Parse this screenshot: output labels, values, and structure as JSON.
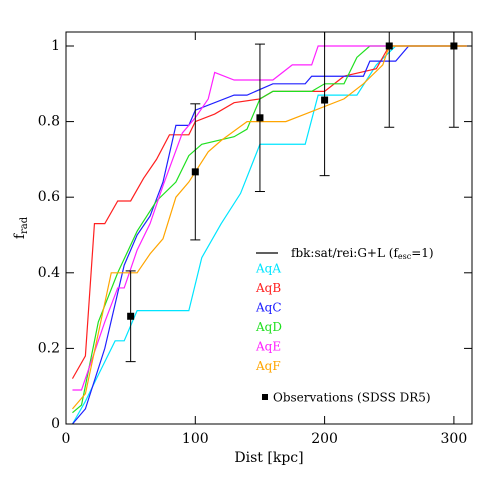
{
  "chart_data": {
    "type": "line",
    "xlabel": "Dist [kpc]",
    "ylabel": {
      "main": "f",
      "sub": "rad"
    },
    "xlim": [
      0,
      314
    ],
    "ylim": [
      0,
      1.037
    ],
    "xticks": [
      0,
      100,
      200,
      300
    ],
    "yticks": [
      0,
      0.2,
      0.4,
      0.6,
      0.8,
      1
    ],
    "model_label": {
      "main": "fbk:sat/rei:G+L (f",
      "sub": "esc",
      "tail": "=1)"
    },
    "series": [
      {
        "name": "AqA",
        "color": "#00e5ff",
        "x": [
          5,
          15,
          25,
          38,
          45,
          55,
          95,
          105,
          120,
          135,
          150,
          185,
          195,
          225,
          240,
          255,
          310
        ],
        "values": [
          0,
          0.06,
          0.13,
          0.22,
          0.22,
          0.3,
          0.3,
          0.44,
          0.53,
          0.61,
          0.74,
          0.74,
          0.87,
          0.87,
          0.95,
          1,
          1
        ]
      },
      {
        "name": "AqB",
        "color": "#ff2020",
        "x": [
          5,
          15,
          22,
          30,
          40,
          50,
          60,
          70,
          80,
          95,
          100,
          115,
          130,
          150,
          160,
          200,
          215,
          240,
          250,
          310
        ],
        "values": [
          0.12,
          0.18,
          0.53,
          0.53,
          0.59,
          0.59,
          0.65,
          0.7,
          0.765,
          0.765,
          0.8,
          0.82,
          0.85,
          0.86,
          0.88,
          0.88,
          0.92,
          0.94,
          1,
          1
        ]
      },
      {
        "name": "AqC",
        "color": "#2020ff",
        "x": [
          5,
          15,
          30,
          45,
          55,
          65,
          75,
          85,
          95,
          100,
          130,
          140,
          160,
          185,
          190,
          230,
          235,
          255,
          265,
          310
        ],
        "values": [
          0,
          0.04,
          0.2,
          0.42,
          0.5,
          0.55,
          0.64,
          0.79,
          0.79,
          0.83,
          0.87,
          0.87,
          0.9,
          0.9,
          0.92,
          0.92,
          0.96,
          0.96,
          1,
          1
        ]
      },
      {
        "name": "AqD",
        "color": "#20e020",
        "x": [
          5,
          12,
          25,
          40,
          55,
          70,
          85,
          95,
          105,
          130,
          140,
          150,
          160,
          190,
          200,
          215,
          225,
          235,
          310
        ],
        "values": [
          0.03,
          0.05,
          0.27,
          0.4,
          0.51,
          0.59,
          0.64,
          0.71,
          0.74,
          0.76,
          0.78,
          0.86,
          0.88,
          0.88,
          0.9,
          0.9,
          0.97,
          1,
          1
        ]
      },
      {
        "name": "AqE",
        "color": "#ff20ff",
        "x": [
          5,
          12,
          30,
          40,
          45,
          55,
          65,
          75,
          90,
          100,
          110,
          115,
          130,
          160,
          175,
          190,
          195,
          310
        ],
        "values": [
          0.09,
          0.09,
          0.27,
          0.36,
          0.36,
          0.46,
          0.53,
          0.63,
          0.77,
          0.81,
          0.86,
          0.93,
          0.91,
          0.91,
          0.95,
          0.95,
          1,
          1
        ]
      },
      {
        "name": "AqF",
        "color": "#ffa500",
        "x": [
          5,
          15,
          35,
          55,
          65,
          75,
          85,
          95,
          110,
          120,
          140,
          170,
          185,
          215,
          230,
          245,
          250,
          310
        ],
        "values": [
          0.04,
          0.08,
          0.4,
          0.4,
          0.45,
          0.49,
          0.6,
          0.64,
          0.72,
          0.75,
          0.8,
          0.8,
          0.82,
          0.86,
          0.9,
          0.95,
          1,
          1
        ]
      }
    ],
    "observations": {
      "name": "Observations (SDSS DR5)",
      "color": "#000000",
      "x": [
        50,
        100,
        150,
        200,
        250,
        300
      ],
      "values": [
        0.285,
        0.667,
        0.81,
        0.857,
        1,
        1
      ],
      "errors": [
        0.12,
        0.18,
        0.195,
        0.2,
        0.215,
        0.215
      ]
    }
  }
}
